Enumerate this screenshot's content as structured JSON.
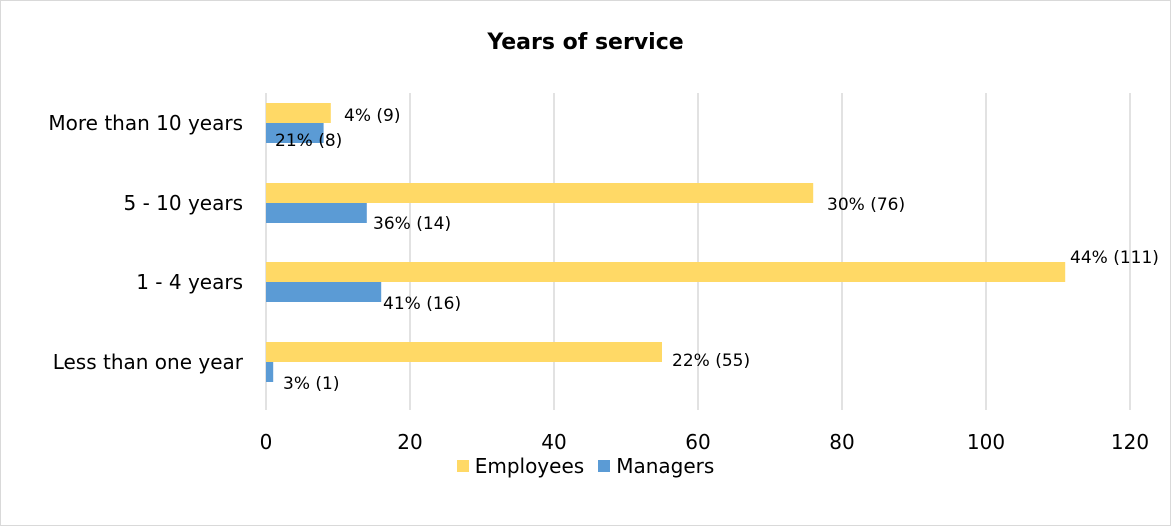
{
  "chart_data": {
    "type": "bar",
    "orientation": "horizontal",
    "title": "Years of service",
    "categories": [
      "More than 10 years",
      "5 - 10 years",
      "1 - 4 years",
      "Less than one year"
    ],
    "series": [
      {
        "name": "Employees",
        "color": "#FFD966",
        "values": [
          9,
          76,
          111,
          55
        ],
        "labels": [
          "4% (9)",
          "30% (76)",
          "44% (111)",
          "22% (55)"
        ]
      },
      {
        "name": "Managers",
        "color": "#5B9BD5",
        "values": [
          8,
          14,
          16,
          1
        ],
        "labels": [
          "21% (8)",
          "36% (14)",
          "41% (16)",
          "3% (1)"
        ]
      }
    ],
    "xlim": [
      0,
      120
    ],
    "xticks": [
      0,
      20,
      40,
      60,
      80,
      100,
      120
    ],
    "grid": true,
    "legend_position": "bottom"
  }
}
